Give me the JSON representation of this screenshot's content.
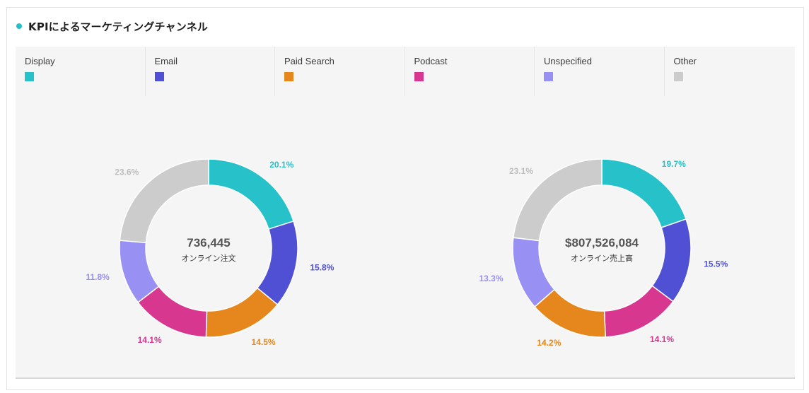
{
  "panel": {
    "title": "KPIによるマーケティングチャンネル",
    "title_dot_color": "#27bfc7"
  },
  "legend": [
    {
      "label": "Display",
      "color": "#27c1c9"
    },
    {
      "label": "Email",
      "color": "#5050d4"
    },
    {
      "label": "Paid Search",
      "color": "#e5871c"
    },
    {
      "label": "Podcast",
      "color": "#d83790"
    },
    {
      "label": "Unspecified",
      "color": "#9890f2"
    },
    {
      "label": "Other",
      "color": "#cccccc"
    }
  ],
  "chart_data": [
    {
      "type": "pie",
      "donut": true,
      "center_value": "736,445",
      "center_label": "オンライン注文",
      "categories": [
        "Display",
        "Email",
        "Paid Search",
        "Podcast",
        "Unspecified",
        "Other"
      ],
      "values": [
        20.1,
        15.8,
        14.5,
        14.1,
        11.8,
        23.6
      ],
      "labels": [
        "20.1%",
        "15.8%",
        "14.5%",
        "14.1%",
        "11.8%",
        "23.6%"
      ]
    },
    {
      "type": "pie",
      "donut": true,
      "center_value": "$807,526,084",
      "center_label": "オンライン売上高",
      "categories": [
        "Display",
        "Email",
        "Paid Search",
        "Podcast",
        "Unspecified",
        "Other"
      ],
      "values": [
        19.7,
        15.5,
        14.2,
        14.1,
        13.3,
        23.1
      ],
      "labels": [
        "19.7%",
        "15.5%",
        "14.2%",
        "14.1%",
        "13.3%",
        "23.1%"
      ],
      "slice_order": [
        "Display",
        "Email",
        "Podcast",
        "Paid Search",
        "Unspecified",
        "Other"
      ]
    }
  ]
}
